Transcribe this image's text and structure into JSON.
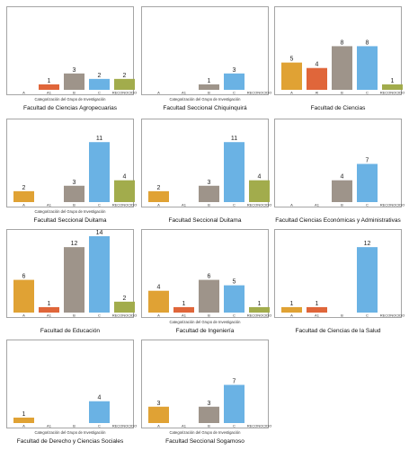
{
  "colors": {
    "A": "#E0A234",
    "A!": "#E0663A",
    "B": "#9E948A",
    "C": "#6AB2E4",
    "RECONOCIDO": "#A2AC4C"
  },
  "chart_data": [
    {
      "type": "bar",
      "title": "Facultad de Ciencias Agropecuarias",
      "xlabel": "Categorización del Grupo de Investigación",
      "categories": [
        "A",
        "A1",
        "B",
        "C",
        "RECONOCIDO"
      ],
      "values": [
        0,
        1,
        3,
        2,
        2
      ],
      "ylim": [
        0,
        14
      ]
    },
    {
      "type": "bar",
      "title": "Facultad Seccional Chiquinquirá",
      "xlabel": "Categorización del Grupo de Investigación",
      "categories": [
        "A",
        "A1",
        "B",
        "C",
        "RECONOCIDO"
      ],
      "values": [
        0,
        0,
        1,
        3,
        0
      ],
      "ylim": [
        0,
        14
      ]
    },
    {
      "type": "bar",
      "title": "Facultad de Ciencias",
      "xlabel": "",
      "categories": [
        "A",
        "A!",
        "B",
        "C",
        "RECONOCIDO"
      ],
      "values": [
        5,
        4,
        8,
        8,
        1
      ],
      "ylim": [
        0,
        14
      ]
    },
    {
      "type": "bar",
      "title": "Facultad Seccional Duitama",
      "xlabel": "Categorización del Grupo de Investigación",
      "categories": [
        "A",
        "A1",
        "B",
        "C",
        "RECONOCIDO"
      ],
      "values": [
        2,
        0,
        3,
        11,
        4
      ],
      "ylim": [
        0,
        14
      ]
    },
    {
      "type": "bar",
      "title": "Facultad Seccional Duitama",
      "xlabel": "",
      "categories": [
        "A",
        "A1",
        "B",
        "C",
        "RECONOCIDO"
      ],
      "values": [
        2,
        0,
        3,
        11,
        4
      ],
      "ylim": [
        0,
        14
      ]
    },
    {
      "type": "bar",
      "title": "Facultad Ciencias Económicas y Administrativas",
      "xlabel": "",
      "categories": [
        "A",
        "A1",
        "B",
        "C",
        "RECONOCIDO"
      ],
      "values": [
        0,
        0,
        4,
        7,
        0
      ],
      "ylim": [
        0,
        14
      ]
    },
    {
      "type": "bar",
      "title": "Facultad de Educación",
      "xlabel": "",
      "categories": [
        "A",
        "A1",
        "B",
        "C",
        "RECONOCIDO"
      ],
      "values": [
        6,
        1,
        12,
        14,
        2
      ],
      "ylim": [
        0,
        14
      ]
    },
    {
      "type": "bar",
      "title": "Facultad de Ingeniería",
      "xlabel": "Categorización del Grupo de Investigación",
      "categories": [
        "A",
        "A1",
        "B",
        "C",
        "RECONOCIDO"
      ],
      "values": [
        4,
        1,
        6,
        5,
        1
      ],
      "ylim": [
        0,
        14
      ]
    },
    {
      "type": "bar",
      "title": "Facultad de Ciencias de la Salud",
      "xlabel": "",
      "categories": [
        "A",
        "A1",
        "B",
        "C",
        "RECONOCIDO"
      ],
      "values": [
        1,
        1,
        0,
        12,
        0
      ],
      "ylim": [
        0,
        14
      ]
    },
    {
      "type": "bar",
      "title": "Facultad de Derecho y Ciencias Sociales",
      "xlabel": "Categorización del Grupo de Investigación",
      "categories": [
        "A",
        "A1",
        "B",
        "C",
        "RECONOCIDO"
      ],
      "values": [
        1,
        0,
        0,
        4,
        0
      ],
      "ylim": [
        0,
        14
      ]
    },
    {
      "type": "bar",
      "title": "Facultad Seccional Sogamoso",
      "xlabel": "Categorización del Grupo de Investigación",
      "categories": [
        "A",
        "A1",
        "B",
        "C",
        "RECONOCIDO"
      ],
      "values": [
        3,
        0,
        3,
        7,
        0
      ],
      "ylim": [
        0,
        14
      ]
    }
  ]
}
